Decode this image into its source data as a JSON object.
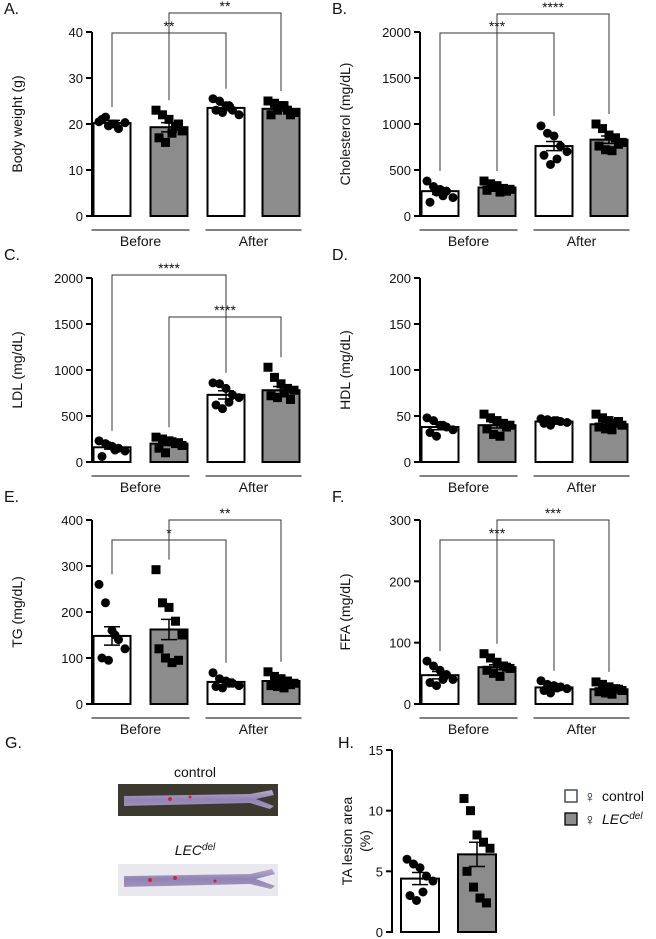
{
  "chart_data": [
    {
      "type": "bar",
      "panel": "A.",
      "ylabel": "Body weight (g)",
      "categories": [
        "Before",
        "After"
      ],
      "ylim": [
        0,
        40
      ],
      "yticks": [
        0,
        10,
        20,
        30,
        40
      ],
      "significance": [
        "**",
        "**"
      ],
      "series": [
        {
          "color": "#ffffff",
          "marker": "circle",
          "values": [
            20.2,
            23.5
          ],
          "errors": [
            0.6,
            0.6
          ],
          "points": [
            [
              20.5,
              21.5,
              20,
              19,
              20.3,
              21,
              19.6,
              20
            ],
            [
              25.5,
              25,
              24,
              23,
              22,
              23,
              22.5,
              24
            ]
          ]
        },
        {
          "color": "#8c8c8c",
          "marker": "square",
          "values": [
            19.3,
            23.3
          ],
          "errors": [
            1.0,
            0.5
          ],
          "points": [
            [
              23,
              22,
              21,
              19.5,
              18.5,
              17,
              16,
              18,
              20
            ],
            [
              25,
              24.5,
              24,
              23,
              22.5,
              22,
              23,
              24,
              22
            ]
          ]
        }
      ]
    },
    {
      "type": "bar",
      "panel": "B.",
      "ylabel": "Cholesterol (mg/dL)",
      "categories": [
        "Before",
        "After"
      ],
      "ylim": [
        0,
        2000
      ],
      "yticks": [
        0,
        500,
        1000,
        1500,
        2000
      ],
      "significance": [
        "***",
        "****"
      ],
      "series": [
        {
          "color": "#ffffff",
          "marker": "circle",
          "values": [
            270,
            760
          ],
          "errors": [
            35,
            50
          ],
          "points": [
            [
              380,
              320,
              290,
              270,
              200,
              150,
              260,
              220
            ],
            [
              980,
              900,
              870,
              760,
              700,
              660,
              560,
              620
            ]
          ]
        },
        {
          "color": "#8c8c8c",
          "marker": "square",
          "values": [
            310,
            830
          ],
          "errors": [
            20,
            40
          ],
          "points": [
            [
              380,
              350,
              330,
              300,
              290,
              280,
              310,
              260,
              270
            ],
            [
              1000,
              950,
              880,
              850,
              800,
              760,
              720,
              710,
              780
            ]
          ]
        }
      ]
    },
    {
      "type": "bar",
      "panel": "C.",
      "ylabel": "LDL (mg/dL)",
      "categories": [
        "Before",
        "After"
      ],
      "ylim": [
        0,
        2000
      ],
      "yticks": [
        0,
        500,
        1000,
        1500,
        2000
      ],
      "significance": [
        "****",
        "****"
      ],
      "series": [
        {
          "color": "#ffffff",
          "marker": "circle",
          "values": [
            160,
            730
          ],
          "errors": [
            20,
            45
          ],
          "points": [
            [
              230,
              200,
              170,
              150,
              120,
              60,
              180,
              130
            ],
            [
              860,
              850,
              800,
              730,
              700,
              620,
              580,
              650
            ]
          ]
        },
        {
          "color": "#8c8c8c",
          "marker": "square",
          "values": [
            200,
            780
          ],
          "errors": [
            20,
            40
          ],
          "points": [
            [
              270,
              250,
              230,
              200,
              180,
              150,
              100,
              220,
              210
            ],
            [
              1030,
              920,
              850,
              800,
              780,
              720,
              700,
              750,
              680
            ]
          ]
        }
      ]
    },
    {
      "type": "bar",
      "panel": "D.",
      "ylabel": "HDL (mg/dL)",
      "categories": [
        "Before",
        "After"
      ],
      "ylim": [
        0,
        200
      ],
      "yticks": [
        0,
        50,
        100,
        150,
        200
      ],
      "significance": [],
      "series": [
        {
          "color": "#ffffff",
          "marker": "circle",
          "values": [
            38,
            44
          ],
          "errors": [
            3,
            1
          ],
          "points": [
            [
              48,
              45,
              40,
              38,
              35,
              32,
              28,
              40
            ],
            [
              47,
              46,
              45,
              44,
              43,
              42,
              40,
              45
            ]
          ]
        },
        {
          "color": "#8c8c8c",
          "marker": "square",
          "values": [
            40,
            41
          ],
          "errors": [
            3,
            2
          ],
          "points": [
            [
              52,
              48,
              45,
              42,
              40,
              36,
              30,
              28,
              38
            ],
            [
              52,
              48,
              45,
              42,
              40,
              38,
              36,
              35,
              44
            ]
          ]
        }
      ]
    },
    {
      "type": "bar",
      "panel": "E.",
      "ylabel": "TG (mg/dL)",
      "categories": [
        "Before",
        "After"
      ],
      "ylim": [
        0,
        400
      ],
      "yticks": [
        0,
        100,
        200,
        300,
        400
      ],
      "significance": [
        "*",
        "**"
      ],
      "series": [
        {
          "color": "#ffffff",
          "marker": "circle",
          "values": [
            148,
            48
          ],
          "errors": [
            20,
            6
          ],
          "points": [
            [
              260,
              220,
              160,
              140,
              120,
              100,
              95,
              150
            ],
            [
              68,
              55,
              50,
              45,
              40,
              38,
              35,
              45
            ]
          ]
        },
        {
          "color": "#8c8c8c",
          "marker": "square",
          "values": [
            162,
            50
          ],
          "errors": [
            22,
            6
          ],
          "points": [
            [
              292,
              220,
              210,
              180,
              150,
              120,
              100,
              90,
              95
            ],
            [
              70,
              60,
              55,
              50,
              45,
              40,
              38,
              35,
              42
            ]
          ]
        }
      ]
    },
    {
      "type": "bar",
      "panel": "F.",
      "ylabel": "FFA (mg/dL)",
      "categories": [
        "Before",
        "After"
      ],
      "ylim": [
        0,
        300
      ],
      "yticks": [
        0,
        100,
        200,
        300
      ],
      "significance": [
        "***",
        "***"
      ],
      "series": [
        {
          "color": "#ffffff",
          "marker": "circle",
          "values": [
            47,
            27
          ],
          "errors": [
            6,
            3
          ],
          "points": [
            [
              70,
              62,
              55,
              48,
              40,
              35,
              30,
              40
            ],
            [
              38,
              32,
              30,
              28,
              25,
              22,
              18,
              26
            ]
          ]
        },
        {
          "color": "#8c8c8c",
          "marker": "square",
          "values": [
            60,
            24
          ],
          "errors": [
            4,
            3
          ],
          "points": [
            [
              82,
              75,
              68,
              62,
              58,
              55,
              50,
              45,
              60
            ],
            [
              36,
              32,
              28,
              25,
              22,
              20,
              18,
              16,
              24
            ]
          ]
        }
      ]
    },
    {
      "type": "bar",
      "panel": "H.",
      "ylabel": [
        "TA lesion area",
        "(%)"
      ],
      "ylim": [
        0,
        15
      ],
      "yticks": [
        0,
        5,
        10,
        15
      ],
      "legend_symbol": "♀",
      "significance": [],
      "series": [
        {
          "name": "control",
          "color": "#ffffff",
          "marker": "circle",
          "values": [
            4.4
          ],
          "errors": [
            0.5
          ],
          "points": [
            [
              6,
              5.6,
              5.3,
              4.6,
              4.2,
              3,
              2.6,
              3.3
            ]
          ]
        },
        {
          "name": {
            "base": "LEC",
            "sup": "del"
          },
          "color": "#8c8c8c",
          "marker": "square",
          "values": [
            6.4
          ],
          "errors": [
            1.0
          ],
          "points": [
            [
              11,
              10,
              8,
              7.4,
              6.9,
              5,
              3.7,
              2.8,
              2.4
            ]
          ]
        }
      ]
    }
  ],
  "panel_g": {
    "label": "G.",
    "captions": [
      "control",
      {
        "base": "LEC",
        "sup": "del"
      }
    ]
  }
}
